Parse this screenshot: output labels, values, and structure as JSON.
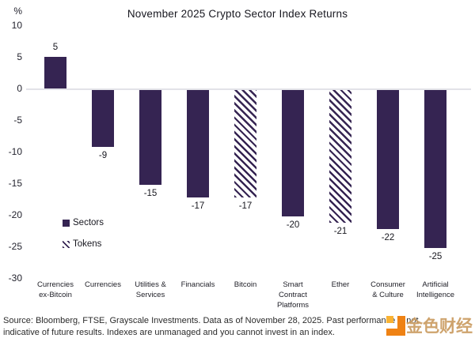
{
  "title": "November 2025 Crypto Sector Index Returns",
  "chart_data": {
    "type": "bar",
    "title": "November 2025 Crypto Sector Index Returns",
    "unit_label": "%",
    "categories": [
      "Currencies ex-Bitcoin",
      "Currencies",
      "Utilities & Services",
      "Financials",
      "Bitcoin",
      "Smart Contract Platforms",
      "Ether",
      "Consumer & Culture",
      "Artificial Intelligence"
    ],
    "category_lines": [
      "Currencies\nex-Bitcoin",
      "Currencies",
      "Utilities &\nServices",
      "Financials",
      "Bitcoin",
      "Smart\nContract\nPlatforms",
      "Ether",
      "Consumer\n& Culture",
      "Artificial\nIntelligence"
    ],
    "values": [
      5,
      -9,
      -15,
      -17,
      -17,
      -20,
      -21,
      -22,
      -25
    ],
    "hatched": [
      false,
      false,
      false,
      false,
      true,
      false,
      true,
      false,
      false
    ],
    "value_labels": [
      "5",
      "-9",
      "-15",
      "-17",
      "-17",
      "-20",
      "-21",
      "-22",
      "-25"
    ],
    "yticks": [
      10,
      5,
      0,
      -5,
      -10,
      -15,
      -20,
      -25,
      -30
    ],
    "ylim": [
      -30,
      10
    ],
    "grid": "zero-line-only",
    "legend_position": "inside-left",
    "bar_color": "#352452",
    "zero_line_color": "#e2e2e8",
    "legend": [
      {
        "name": "Sectors",
        "style": "solid"
      },
      {
        "name": "Tokens",
        "style": "hatched"
      }
    ]
  },
  "footer": {
    "line1": "Source: Bloomberg, FTSE, Grayscale Investments. Data as of November 28, 2025. Past performance is not",
    "line2": "indicative of future results. Indexes are unmanaged and you cannot invest in an index."
  },
  "watermark": {
    "text": "金色财经",
    "text_color": "#c99a5e",
    "logo_color": "#ef8214"
  }
}
